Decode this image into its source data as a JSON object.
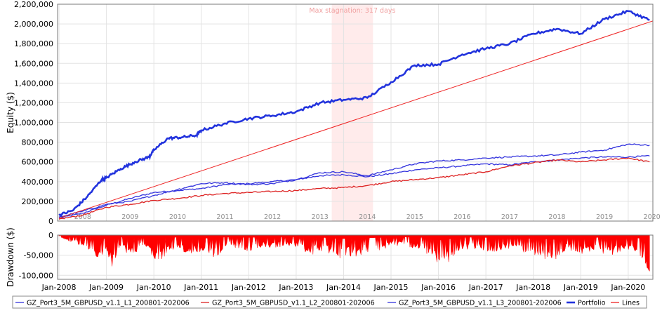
{
  "chart_data": [
    {
      "type": "line",
      "ylabel": "Equity ($)",
      "annotation": "Max stagnation: 317 days",
      "stagnation_range": [
        2013.75,
        2014.62
      ],
      "ylim": [
        0,
        2200000
      ],
      "xlim": [
        2007.97,
        2020.52
      ],
      "y_ticks": [
        {
          "v": 0,
          "label": "0"
        },
        {
          "v": 200000,
          "label": "200,000"
        },
        {
          "v": 400000,
          "label": "400,000"
        },
        {
          "v": 600000,
          "label": "600,000"
        },
        {
          "v": 800000,
          "label": "800,000"
        },
        {
          "v": 1000000,
          "label": "1,000,000"
        },
        {
          "v": 1200000,
          "label": "1,200,000"
        },
        {
          "v": 1400000,
          "label": "1,400,000"
        },
        {
          "v": 1600000,
          "label": "1,600,000"
        },
        {
          "v": 1800000,
          "label": "1,800,000"
        },
        {
          "v": 2000000,
          "label": "2,000,000"
        },
        {
          "v": 2200000,
          "label": "2,200,000"
        }
      ],
      "year_labels": [
        "2008",
        "2009",
        "2010",
        "2011",
        "2012",
        "2013",
        "2014",
        "2015",
        "2016",
        "2017",
        "2018",
        "2019",
        "2020"
      ],
      "grid": true,
      "series": [
        {
          "name": "GZ_Port3_5M_GBPUSD_v1.1_L1_200801-202006",
          "color": "#3333dd",
          "x": [
            2008.0,
            2008.5,
            2009.0,
            2009.5,
            2010.0,
            2010.5,
            2011.0,
            2011.5,
            2012.0,
            2012.5,
            2013.0,
            2013.5,
            2014.0,
            2014.5,
            2015.0,
            2015.5,
            2016.0,
            2016.5,
            2017.0,
            2017.5,
            2018.0,
            2018.5,
            2019.0,
            2019.5,
            2020.0,
            2020.45
          ],
          "y": [
            30000,
            80000,
            160000,
            230000,
            290000,
            310000,
            330000,
            370000,
            380000,
            400000,
            420000,
            460000,
            470000,
            450000,
            480000,
            520000,
            540000,
            560000,
            580000,
            570000,
            600000,
            620000,
            640000,
            650000,
            650000,
            660000
          ]
        },
        {
          "name": "GZ_Port3_5M_GBPUSD_v1.1_L2_200801-202006",
          "color": "#dd2222",
          "x": [
            2008.0,
            2008.5,
            2009.0,
            2009.5,
            2010.0,
            2010.5,
            2011.0,
            2011.5,
            2012.0,
            2012.5,
            2013.0,
            2013.5,
            2014.0,
            2014.5,
            2015.0,
            2015.5,
            2016.0,
            2016.5,
            2017.0,
            2017.5,
            2018.0,
            2018.5,
            2019.0,
            2019.5,
            2020.0,
            2020.45
          ],
          "y": [
            20000,
            60000,
            140000,
            170000,
            210000,
            230000,
            260000,
            280000,
            290000,
            300000,
            310000,
            330000,
            340000,
            360000,
            400000,
            420000,
            440000,
            470000,
            500000,
            560000,
            590000,
            620000,
            600000,
            620000,
            640000,
            600000
          ]
        },
        {
          "name": "GZ_Port3_5M_GBPUSD_v1.1_L3_200801-202006",
          "color": "#3333dd",
          "x": [
            2008.0,
            2008.5,
            2009.0,
            2009.5,
            2010.0,
            2010.5,
            2011.0,
            2011.5,
            2012.0,
            2012.5,
            2013.0,
            2013.5,
            2014.0,
            2014.5,
            2015.0,
            2015.5,
            2016.0,
            2016.5,
            2017.0,
            2017.5,
            2018.0,
            2018.5,
            2019.0,
            2019.5,
            2020.0,
            2020.45
          ],
          "y": [
            40000,
            100000,
            170000,
            200000,
            260000,
            320000,
            380000,
            390000,
            370000,
            380000,
            420000,
            490000,
            500000,
            460000,
            520000,
            580000,
            610000,
            620000,
            640000,
            650000,
            660000,
            670000,
            700000,
            720000,
            780000,
            770000
          ]
        },
        {
          "name": "Portfolio",
          "color": "#2233dd",
          "x": [
            2008.0,
            2008.3,
            2008.6,
            2008.9,
            2009.0,
            2009.3,
            2009.6,
            2009.9,
            2010.0,
            2010.3,
            2010.6,
            2010.9,
            2011.0,
            2011.5,
            2012.0,
            2012.5,
            2013.0,
            2013.5,
            2014.0,
            2014.5,
            2015.0,
            2015.5,
            2016.0,
            2016.5,
            2017.0,
            2017.5,
            2018.0,
            2018.5,
            2019.0,
            2019.5,
            2020.0,
            2020.45
          ],
          "y": [
            60000,
            110000,
            250000,
            420000,
            440000,
            530000,
            600000,
            650000,
            720000,
            840000,
            850000,
            870000,
            920000,
            990000,
            1040000,
            1070000,
            1110000,
            1200000,
            1230000,
            1250000,
            1410000,
            1580000,
            1590000,
            1690000,
            1750000,
            1800000,
            1900000,
            1950000,
            1900000,
            2050000,
            2130000,
            2040000
          ]
        },
        {
          "name": "Lines",
          "color": "#ee2222",
          "x": [
            2008.0,
            2020.52
          ],
          "y": [
            30000,
            2030000
          ]
        }
      ]
    },
    {
      "type": "area",
      "ylabel": "Drawdown ($)",
      "ylim": [
        -110000,
        0
      ],
      "xlim": [
        2007.97,
        2020.52
      ],
      "y_ticks": [
        {
          "v": 0,
          "label": "0"
        },
        {
          "v": -50000,
          "label": "-50,000"
        },
        {
          "v": -100000,
          "label": "-100,000"
        }
      ],
      "x_ticks": [
        {
          "v": 2008.0,
          "label": "Jan-2008"
        },
        {
          "v": 2009.0,
          "label": "Jan-2009"
        },
        {
          "v": 2010.0,
          "label": "Jan-2010"
        },
        {
          "v": 2011.0,
          "label": "Jan-2011"
        },
        {
          "v": 2012.0,
          "label": "Jan-2012"
        },
        {
          "v": 2013.0,
          "label": "Jan-2013"
        },
        {
          "v": 2014.0,
          "label": "Jan-2014"
        },
        {
          "v": 2015.0,
          "label": "Jan-2015"
        },
        {
          "v": 2016.0,
          "label": "Jan-2016"
        },
        {
          "v": 2017.0,
          "label": "Jan-2017"
        },
        {
          "v": 2018.0,
          "label": "Jan-2018"
        },
        {
          "v": 2019.0,
          "label": "Jan-2019"
        },
        {
          "v": 2020.0,
          "label": "Jan-2020"
        }
      ],
      "color": "#ff0000",
      "x": [
        2008.0,
        2008.3,
        2008.6,
        2008.9,
        2009.0,
        2009.1,
        2009.3,
        2009.5,
        2009.8,
        2010.0,
        2010.1,
        2010.3,
        2010.5,
        2010.8,
        2011.0,
        2011.3,
        2011.5,
        2011.8,
        2012.0,
        2012.3,
        2012.5,
        2012.8,
        2013.0,
        2013.3,
        2013.6,
        2013.9,
        2014.2,
        2014.5,
        2014.8,
        2015.0,
        2015.3,
        2015.6,
        2015.9,
        2016.0,
        2016.2,
        2016.4,
        2016.7,
        2017.0,
        2017.3,
        2017.6,
        2017.9,
        2018.1,
        2018.4,
        2018.7,
        2018.9,
        2019.1,
        2019.3,
        2019.6,
        2019.9,
        2020.1,
        2020.3,
        2020.45
      ],
      "y": [
        -5000,
        -20000,
        -35000,
        -80000,
        -40000,
        -85000,
        -30000,
        -55000,
        -30000,
        -60000,
        -75000,
        -40000,
        -35000,
        -50000,
        -45000,
        -60000,
        -30000,
        -35000,
        -40000,
        -30000,
        -35000,
        -25000,
        -30000,
        -50000,
        -40000,
        -60000,
        -55000,
        -45000,
        -40000,
        -25000,
        -30000,
        -35000,
        -60000,
        -85000,
        -70000,
        -40000,
        -35000,
        -40000,
        -45000,
        -30000,
        -55000,
        -50000,
        -75000,
        -35000,
        -45000,
        -50000,
        -35000,
        -55000,
        -40000,
        -35000,
        -60000,
        -95000
      ]
    }
  ],
  "legend": [
    {
      "label": "GZ_Port3_5M_GBPUSD_v1.1_L1_200801-202006",
      "color": "#3333dd",
      "bold": false
    },
    {
      "label": "GZ_Port3_5M_GBPUSD_v1.1_L2_200801-202006",
      "color": "#dd2222",
      "bold": false
    },
    {
      "label": "GZ_Port3_5M_GBPUSD_v1.1_L3_200801-202006",
      "color": "#3333dd",
      "bold": false
    },
    {
      "label": "Portfolio",
      "color": "#2233dd",
      "bold": true
    },
    {
      "label": "Lines",
      "color": "#ee2222",
      "bold": false
    }
  ]
}
